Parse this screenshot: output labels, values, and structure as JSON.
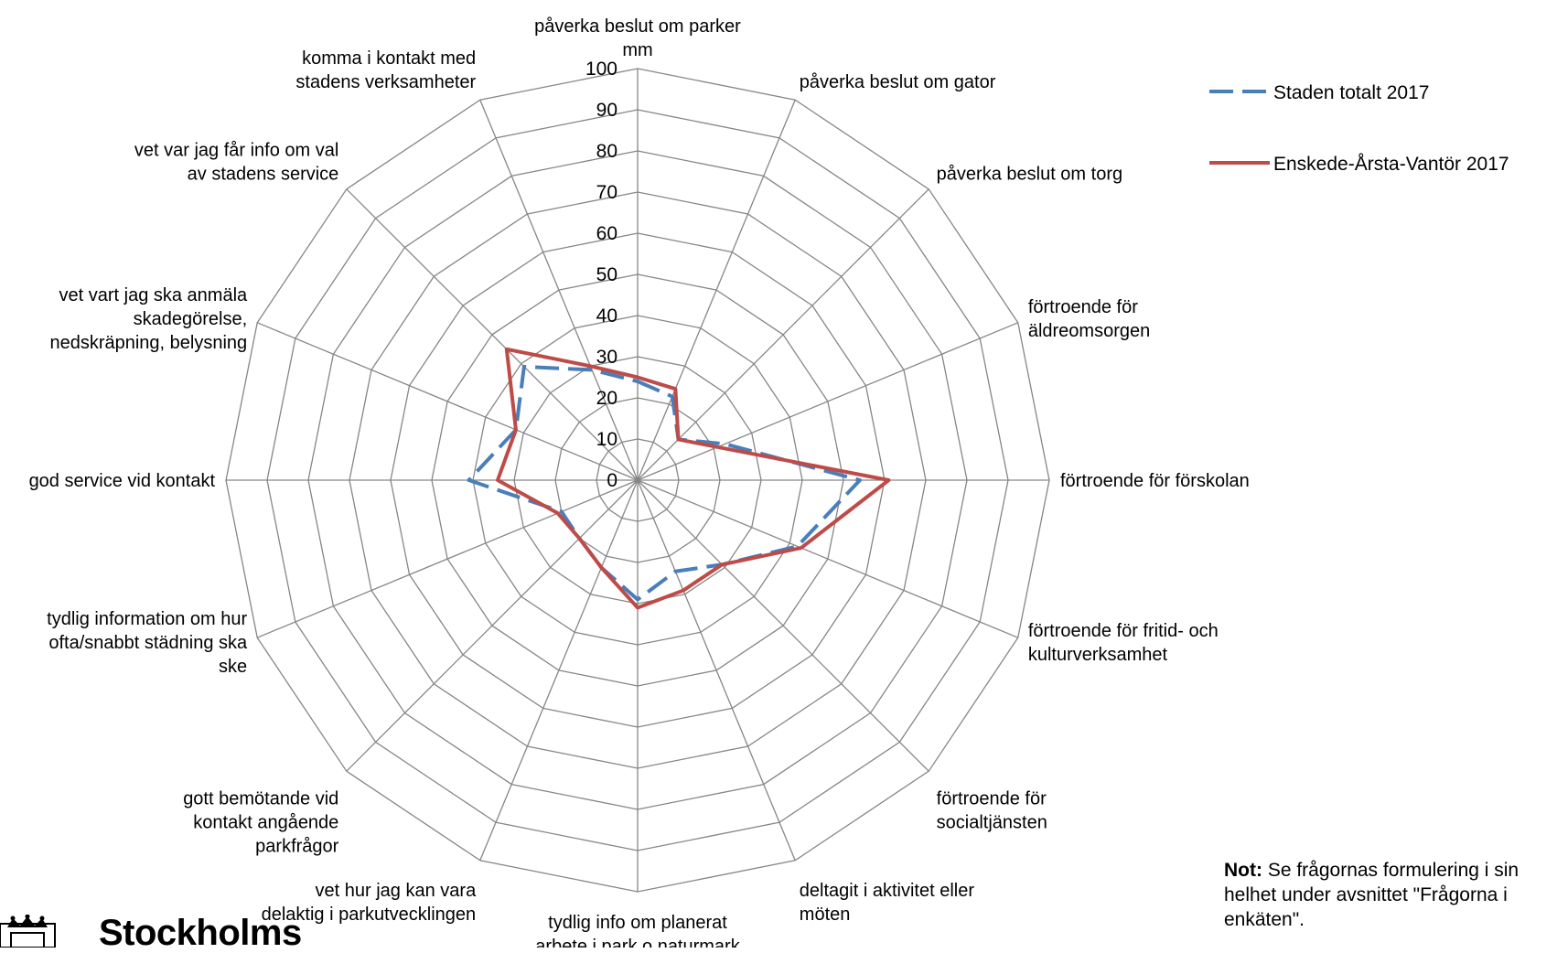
{
  "chart_data": {
    "type": "radar",
    "axes": [
      "påverka beslut om parker mm",
      "påverka beslut om gator",
      "påverka beslut om torg",
      "förtroende för äldreomsorgen",
      "förtroende för förskolan",
      "förtroende för fritid- och kulturverksamhet",
      "förtroende för socialtjänsten",
      "deltagit i aktivitet eller möten",
      "tydlig info om planerat arbete i park o naturmark",
      "vet hur jag kan vara delaktig i parkutvecklingen",
      "gott bemötande vid kontakt angående parkfrågor",
      "tydlig information om hur ofta/snabbt städning ska ske",
      "god service vid kontakt",
      "vet vart jag ska anmäla skadegörelse, nedskräpning, belysning",
      "vet var jag får info om val av stadens service",
      "komma i kontakt med stadens verksamheter"
    ],
    "axis_label_lines": [
      [
        "påverka beslut om parker",
        "mm"
      ],
      [
        "påverka beslut om gator"
      ],
      [
        "påverka beslut om torg"
      ],
      [
        "förtroende för",
        "äldreomsorgen"
      ],
      [
        "förtroende för förskolan"
      ],
      [
        "förtroende för fritid- och",
        "kulturverksamhet"
      ],
      [
        "förtroende för",
        "socialtjänsten"
      ],
      [
        "deltagit i aktivitet eller",
        "möten"
      ],
      [
        "tydlig info om planerat",
        "arbete i park o naturmark"
      ],
      [
        "vet hur jag kan vara",
        "delaktig i parkutvecklingen"
      ],
      [
        "gott bemötande vid",
        "kontakt angående",
        "parkfrågor"
      ],
      [
        "tydlig information om hur",
        "ofta/snabbt städning ska",
        "ske"
      ],
      [
        "god service vid kontakt"
      ],
      [
        "vet vart jag ska anmäla",
        "skadegörelse,",
        "nedskräpning, belysning"
      ],
      [
        "vet var jag får info om val",
        "av stadens service"
      ],
      [
        "komma i kontakt med",
        "stadens verksamheter"
      ]
    ],
    "ticks": [
      "0",
      "10",
      "20",
      "30",
      "40",
      "50",
      "60",
      "70",
      "80",
      "90",
      "100"
    ],
    "range": [
      0,
      100
    ],
    "series": [
      {
        "name": "Staden totalt 2017",
        "color": "#4a7ebb",
        "style": "dashed",
        "values": [
          24,
          22,
          14,
          23,
          54,
          42,
          29,
          24,
          29,
          23,
          20,
          20,
          41,
          32,
          39,
          29
        ]
      },
      {
        "name": "Enskede-Årsta-Vantör 2017",
        "color": "#be4b48",
        "style": "solid",
        "values": [
          25,
          24,
          14,
          21,
          61,
          43,
          29,
          29,
          31,
          23,
          20,
          21,
          34,
          32,
          45,
          30
        ]
      }
    ],
    "legend_position": "top-right"
  },
  "note": {
    "bold": "Not:",
    "text": " Se frågornas formulering i sin helhet under avsnittet \"Frågorna i enkäten\"."
  },
  "logo": {
    "text": "Stockholms"
  }
}
